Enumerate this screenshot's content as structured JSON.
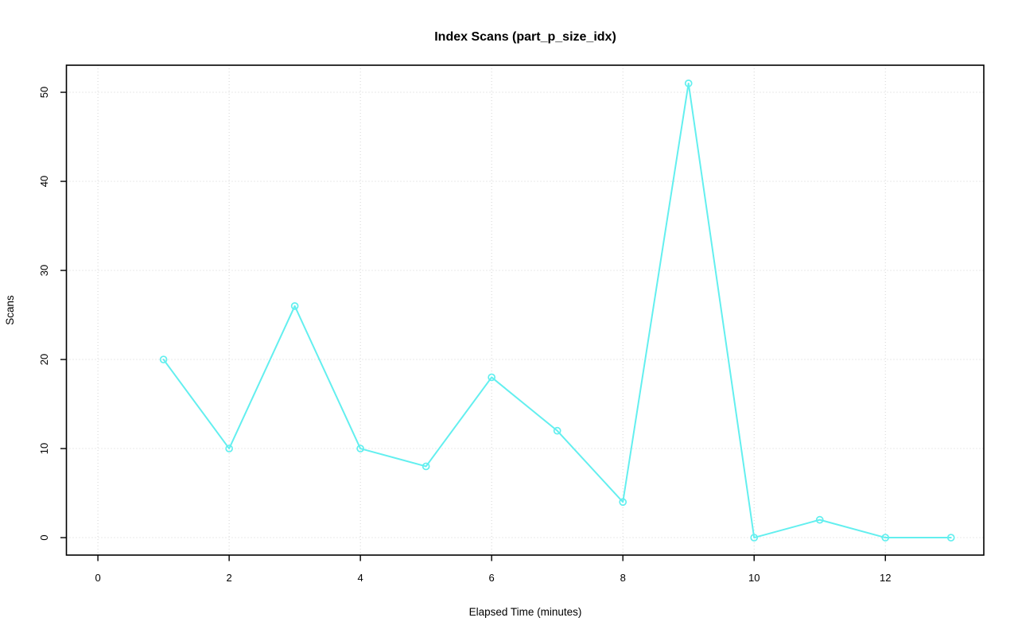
{
  "chart_data": {
    "type": "line",
    "title": "Index Scans (part_p_size_idx)",
    "xlabel": "Elapsed Time (minutes)",
    "ylabel": "Scans",
    "x": [
      1,
      2,
      3,
      4,
      5,
      6,
      7,
      8,
      9,
      10,
      11,
      12,
      13
    ],
    "series": [
      {
        "name": "scans",
        "values": [
          20,
          10,
          26,
          10,
          8,
          18,
          12,
          4,
          51,
          0,
          2,
          0,
          0
        ]
      }
    ],
    "x_ticks": [
      0,
      2,
      4,
      6,
      8,
      10,
      12
    ],
    "y_ticks": [
      0,
      10,
      20,
      30,
      40,
      50
    ],
    "xlim": [
      -0.48,
      13.5
    ],
    "ylim": [
      -1.96,
      53.04
    ],
    "grid": true,
    "grid_style": "dotted",
    "legend": "none",
    "marker": "open-circle",
    "colors": {
      "line": "#63efef",
      "marker": "#63efef",
      "grid": "#d4d4d4",
      "axis": "#000000",
      "background": "#ffffff"
    }
  }
}
